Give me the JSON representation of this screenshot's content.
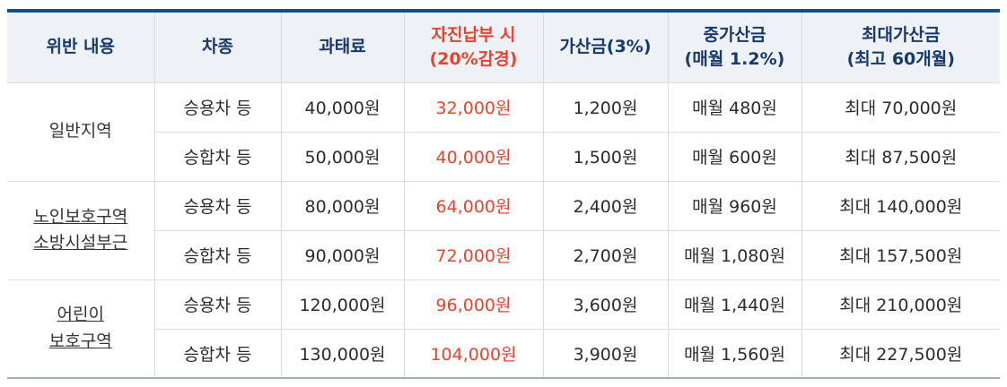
{
  "colors": {
    "top_border": "#0c5190",
    "bottom_border": "#9bb1c1",
    "header_bg": "#eef1f6",
    "header_text": "#17396b",
    "accent_red": "#e8432d",
    "body_text": "#2b2b2b",
    "grid_line": "#d4dade"
  },
  "table": {
    "headers": [
      {
        "id": "violation",
        "lines": [
          "위반 내용"
        ],
        "red": false
      },
      {
        "id": "vehicle",
        "lines": [
          "차종"
        ],
        "red": false
      },
      {
        "id": "fine",
        "lines": [
          "과태료"
        ],
        "red": false
      },
      {
        "id": "voluntary",
        "lines": [
          "자진납부 시",
          "(20%감경)"
        ],
        "red": true
      },
      {
        "id": "surcharge",
        "lines": [
          "가산금(3%)"
        ],
        "red": false
      },
      {
        "id": "monthly",
        "lines": [
          "중가산금",
          "(매월 1.2%)"
        ],
        "red": false
      },
      {
        "id": "max",
        "lines": [
          "최대가산금",
          "(최고 60개월)"
        ],
        "red": false
      }
    ],
    "groups": [
      {
        "violation_lines": [
          "일반지역"
        ],
        "underlined": false,
        "rows": [
          {
            "vehicle": "승용차 등",
            "fine": "40,000원",
            "voluntary": "32,000원",
            "surcharge": "1,200원",
            "monthly": "매월 480원",
            "max": "최대 70,000원"
          },
          {
            "vehicle": "승합차 등",
            "fine": "50,000원",
            "voluntary": "40,000원",
            "surcharge": "1,500원",
            "monthly": "매월 600원",
            "max": "최대 87,500원"
          }
        ]
      },
      {
        "violation_lines": [
          "노인보호구역",
          "소방시설부근"
        ],
        "underlined": true,
        "rows": [
          {
            "vehicle": "승용차 등",
            "fine": "80,000원",
            "voluntary": "64,000원",
            "surcharge": "2,400원",
            "monthly": "매월 960원",
            "max": "최대 140,000원"
          },
          {
            "vehicle": "승합차 등",
            "fine": "90,000원",
            "voluntary": "72,000원",
            "surcharge": "2,700원",
            "monthly": "매월 1,080원",
            "max": "최대 157,500원"
          }
        ]
      },
      {
        "violation_lines": [
          "어린이",
          "보호구역"
        ],
        "underlined": true,
        "rows": [
          {
            "vehicle": "승용차 등",
            "fine": "120,000원",
            "voluntary": "96,000원",
            "surcharge": "3,600원",
            "monthly": "매월 1,440원",
            "max": "최대 210,000원"
          },
          {
            "vehicle": "승합차 등",
            "fine": "130,000원",
            "voluntary": "104,000원",
            "surcharge": "3,900원",
            "monthly": "매월 1,560원",
            "max": "최대 227,500원"
          }
        ]
      }
    ]
  }
}
